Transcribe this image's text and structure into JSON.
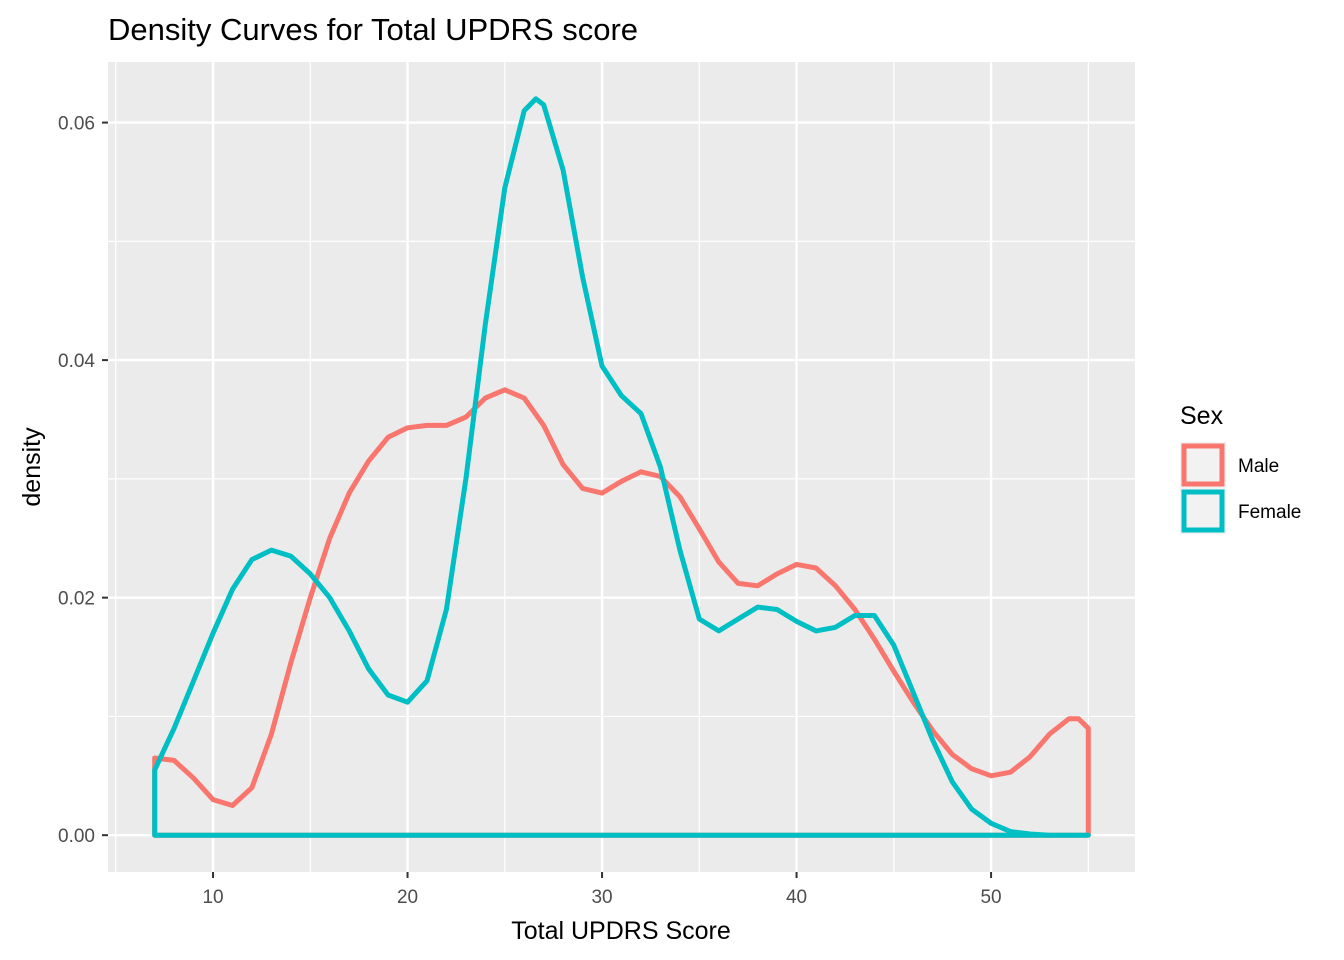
{
  "chart_data": {
    "type": "line",
    "title": "Density Curves for Total UPDRS score",
    "xlabel": "Total UPDRS Score",
    "ylabel": "density",
    "xlim": [
      4.6,
      57.4
    ],
    "ylim": [
      -0.0031,
      0.0651
    ],
    "x_ticks": [
      10,
      20,
      30,
      40,
      50
    ],
    "x_tick_labels": [
      "10",
      "20",
      "30",
      "40",
      "50"
    ],
    "y_ticks": [
      0.0,
      0.02,
      0.04,
      0.06
    ],
    "y_tick_labels": [
      "0.00",
      "0.02",
      "0.04",
      "0.06"
    ],
    "grid": true,
    "legend": {
      "title": "Sex",
      "position": "right"
    },
    "series": [
      {
        "name": "Male",
        "color": "#F8766D",
        "points": [
          [
            7.0,
            0.0
          ],
          [
            7.0,
            0.0065
          ],
          [
            8.0,
            0.0063
          ],
          [
            9.0,
            0.0048
          ],
          [
            10.0,
            0.003
          ],
          [
            11.0,
            0.0025
          ],
          [
            12.0,
            0.004
          ],
          [
            13.0,
            0.0085
          ],
          [
            14.0,
            0.0145
          ],
          [
            15.0,
            0.02
          ],
          [
            16.0,
            0.025
          ],
          [
            17.0,
            0.0288
          ],
          [
            18.0,
            0.0315
          ],
          [
            19.0,
            0.0335
          ],
          [
            20.0,
            0.0343
          ],
          [
            21.0,
            0.0345
          ],
          [
            22.0,
            0.0345
          ],
          [
            23.0,
            0.0352
          ],
          [
            24.0,
            0.0368
          ],
          [
            25.0,
            0.0375
          ],
          [
            26.0,
            0.0368
          ],
          [
            27.0,
            0.0345
          ],
          [
            28.0,
            0.0312
          ],
          [
            29.0,
            0.0292
          ],
          [
            30.0,
            0.0288
          ],
          [
            31.0,
            0.0298
          ],
          [
            32.0,
            0.0306
          ],
          [
            33.0,
            0.0302
          ],
          [
            34.0,
            0.0285
          ],
          [
            35.0,
            0.0258
          ],
          [
            36.0,
            0.023
          ],
          [
            37.0,
            0.0212
          ],
          [
            38.0,
            0.021
          ],
          [
            39.0,
            0.022
          ],
          [
            40.0,
            0.0228
          ],
          [
            41.0,
            0.0225
          ],
          [
            42.0,
            0.021
          ],
          [
            43.0,
            0.019
          ],
          [
            44.0,
            0.0165
          ],
          [
            45.0,
            0.0138
          ],
          [
            46.0,
            0.0112
          ],
          [
            47.0,
            0.0088
          ],
          [
            48.0,
            0.0068
          ],
          [
            49.0,
            0.0056
          ],
          [
            50.0,
            0.005
          ],
          [
            51.0,
            0.0053
          ],
          [
            52.0,
            0.0066
          ],
          [
            53.0,
            0.0085
          ],
          [
            54.0,
            0.0098
          ],
          [
            54.5,
            0.0098
          ],
          [
            55.0,
            0.009
          ],
          [
            55.0,
            0.0
          ],
          [
            7.0,
            0.0
          ]
        ]
      },
      {
        "name": "Female",
        "color": "#00BFC4",
        "points": [
          [
            7.0,
            0.0
          ],
          [
            7.0,
            0.0055
          ],
          [
            8.0,
            0.009
          ],
          [
            9.0,
            0.013
          ],
          [
            10.0,
            0.017
          ],
          [
            11.0,
            0.0207
          ],
          [
            12.0,
            0.0232
          ],
          [
            13.0,
            0.024
          ],
          [
            14.0,
            0.0235
          ],
          [
            15.0,
            0.022
          ],
          [
            16.0,
            0.02
          ],
          [
            17.0,
            0.0172
          ],
          [
            18.0,
            0.014
          ],
          [
            19.0,
            0.0118
          ],
          [
            20.0,
            0.0112
          ],
          [
            21.0,
            0.013
          ],
          [
            22.0,
            0.019
          ],
          [
            23.0,
            0.03
          ],
          [
            24.0,
            0.043
          ],
          [
            25.0,
            0.0545
          ],
          [
            26.0,
            0.061
          ],
          [
            26.6,
            0.062
          ],
          [
            27.0,
            0.0615
          ],
          [
            28.0,
            0.056
          ],
          [
            29.0,
            0.047
          ],
          [
            30.0,
            0.0395
          ],
          [
            31.0,
            0.037
          ],
          [
            32.0,
            0.0355
          ],
          [
            33.0,
            0.031
          ],
          [
            34.0,
            0.024
          ],
          [
            35.0,
            0.0182
          ],
          [
            36.0,
            0.0172
          ],
          [
            37.0,
            0.0182
          ],
          [
            38.0,
            0.0192
          ],
          [
            39.0,
            0.019
          ],
          [
            40.0,
            0.018
          ],
          [
            41.0,
            0.0172
          ],
          [
            42.0,
            0.0175
          ],
          [
            43.0,
            0.0185
          ],
          [
            44.0,
            0.0185
          ],
          [
            45.0,
            0.016
          ],
          [
            46.0,
            0.012
          ],
          [
            47.0,
            0.008
          ],
          [
            48.0,
            0.0045
          ],
          [
            49.0,
            0.0022
          ],
          [
            50.0,
            0.001
          ],
          [
            51.0,
            0.0003
          ],
          [
            52.0,
            0.0001
          ],
          [
            53.0,
            0.0
          ],
          [
            55.0,
            0.0
          ],
          [
            7.0,
            0.0
          ]
        ]
      }
    ]
  }
}
